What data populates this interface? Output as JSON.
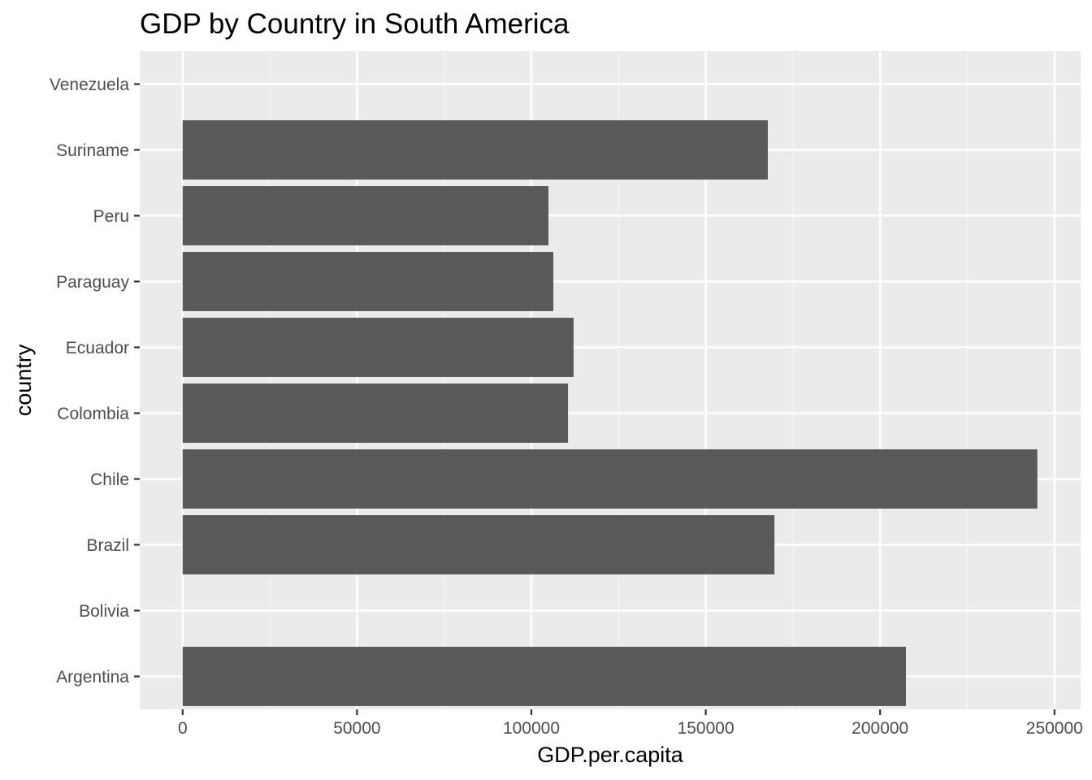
{
  "chart_data": {
    "type": "bar",
    "orientation": "horizontal",
    "title": "GDP by Country in South America",
    "xlabel": "GDP.per.capita",
    "ylabel": "country",
    "categories": [
      "Argentina",
      "Bolivia",
      "Brazil",
      "Chile",
      "Colombia",
      "Ecuador",
      "Paraguay",
      "Peru",
      "Suriname",
      "Venezuela"
    ],
    "values": [
      207400,
      null,
      169700,
      245100,
      110500,
      112100,
      106300,
      104900,
      167800,
      null
    ],
    "x_ticks": [
      0,
      50000,
      100000,
      150000,
      200000,
      250000
    ],
    "xlim": [
      -12300,
      257500
    ],
    "grid": true,
    "legend": "none",
    "colors": {
      "bar": "#595959",
      "panel": "#ebebeb",
      "grid_major": "#ffffff",
      "grid_minor": "#f5f5f5",
      "tick_label": "#4d4d4d",
      "tick_mark": "#333333"
    }
  }
}
